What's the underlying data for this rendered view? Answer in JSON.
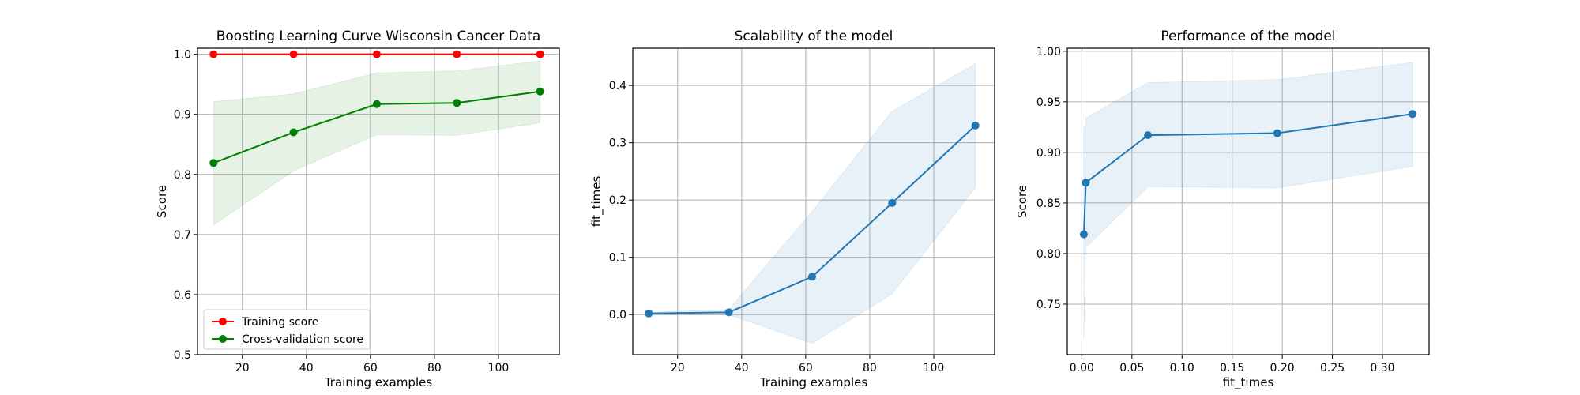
{
  "colors": {
    "training": "#ff0000",
    "cv": "#008000",
    "cv_band": "#008000",
    "blue": "#1f77b4",
    "grid": "#b0b0b0"
  },
  "chart_data": [
    {
      "type": "line",
      "title": "Boosting Learning Curve Wisconsin Cancer Data",
      "xlabel": "Training examples",
      "ylabel": "Score",
      "xlim": [
        6,
        119
      ],
      "ylim": [
        0.5,
        1.01
      ],
      "xticks": [
        20,
        40,
        60,
        80,
        100
      ],
      "yticks": [
        0.5,
        0.6,
        0.7,
        0.8,
        0.9,
        1.0
      ],
      "xtick_labels": [
        "20",
        "40",
        "60",
        "80",
        "100"
      ],
      "ytick_labels": [
        "0.5",
        "0.6",
        "0.7",
        "0.8",
        "0.9",
        "1.0"
      ],
      "grid": true,
      "legend": "lower left",
      "x": [
        11,
        36,
        62,
        87,
        113
      ],
      "series": [
        {
          "name": "Training score",
          "color": "#ff0000",
          "values": [
            1.0,
            1.0,
            1.0,
            1.0,
            1.0
          ],
          "band_lower": [
            1.0,
            1.0,
            1.0,
            1.0,
            1.0
          ],
          "band_upper": [
            1.0,
            1.0,
            1.0,
            1.0,
            1.0
          ]
        },
        {
          "name": "Cross-validation score",
          "color": "#008000",
          "values": [
            0.819,
            0.87,
            0.917,
            0.919,
            0.938
          ],
          "band_lower": [
            0.716,
            0.806,
            0.866,
            0.865,
            0.886
          ],
          "band_upper": [
            0.921,
            0.934,
            0.969,
            0.972,
            0.989
          ]
        }
      ]
    },
    {
      "type": "line",
      "title": "Scalability of the model",
      "xlabel": "Training examples",
      "ylabel": "fit_times",
      "xlim": [
        6,
        119
      ],
      "ylim": [
        -0.07,
        0.465
      ],
      "xticks": [
        20,
        40,
        60,
        80,
        100
      ],
      "yticks": [
        0.0,
        0.1,
        0.2,
        0.3,
        0.4
      ],
      "xtick_labels": [
        "20",
        "40",
        "60",
        "80",
        "100"
      ],
      "ytick_labels": [
        "0.0",
        "0.1",
        "0.2",
        "0.3",
        "0.4"
      ],
      "grid": true,
      "x": [
        11,
        36,
        62,
        87,
        113
      ],
      "series": [
        {
          "color": "#1f77b4",
          "values": [
            0.002,
            0.004,
            0.066,
            0.195,
            0.33
          ],
          "band_lower": [
            0.0,
            0.0,
            -0.05,
            0.036,
            0.222
          ],
          "band_upper": [
            0.004,
            0.009,
            0.18,
            0.355,
            0.438
          ]
        }
      ]
    },
    {
      "type": "line",
      "title": "Performance of the model",
      "xlabel": "fit_times",
      "ylabel": "Score",
      "xlim": [
        -0.0145,
        0.3465
      ],
      "ylim": [
        0.7,
        1.003
      ],
      "xticks": [
        0.0,
        0.05,
        0.1,
        0.15,
        0.2,
        0.25,
        0.3
      ],
      "yticks": [
        0.75,
        0.8,
        0.85,
        0.9,
        0.95,
        1.0
      ],
      "xtick_labels": [
        "0.00",
        "0.05",
        "0.10",
        "0.15",
        "0.20",
        "0.25",
        "0.30"
      ],
      "ytick_labels": [
        "0.75",
        "0.80",
        "0.85",
        "0.90",
        "0.95",
        "1.00"
      ],
      "grid": true,
      "x": [
        0.002,
        0.004,
        0.066,
        0.195,
        0.33
      ],
      "series": [
        {
          "color": "#1f77b4",
          "values": [
            0.819,
            0.87,
            0.917,
            0.919,
            0.938
          ],
          "band_lower": [
            0.716,
            0.806,
            0.866,
            0.865,
            0.886
          ],
          "band_upper": [
            0.921,
            0.934,
            0.969,
            0.972,
            0.989
          ]
        }
      ]
    }
  ]
}
